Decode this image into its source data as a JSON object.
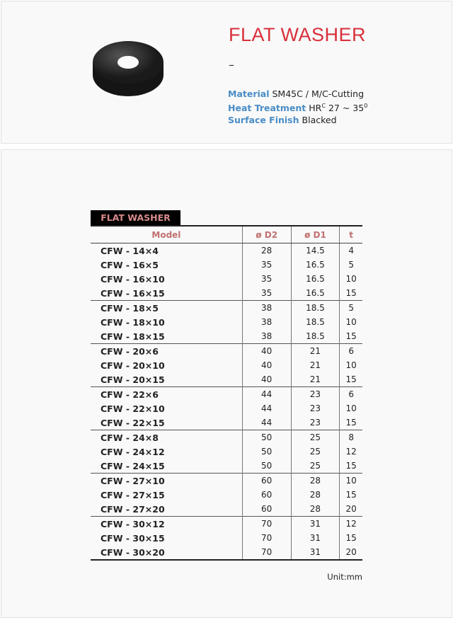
{
  "header": {
    "title": "FLAT WASHER",
    "dash": "–",
    "specs": [
      {
        "label": "Material",
        "value": "SM45C / M/C-Cutting"
      },
      {
        "label": "Heat Treatment",
        "value": "HR",
        "sup": "C",
        "value2": " 27 ~ 35",
        "sup2": "0"
      },
      {
        "label": "Surface Finish",
        "value": "Blacked"
      }
    ]
  },
  "table": {
    "title": "FLAT WASHER",
    "columns": [
      "Model",
      "ø D2",
      "ø D1",
      "t"
    ],
    "rows": [
      [
        "CFW - 14×4",
        "28",
        "14.5",
        "4"
      ],
      [
        "CFW - 16×5",
        "35",
        "16.5",
        "5"
      ],
      [
        "CFW - 16×10",
        "35",
        "16.5",
        "10"
      ],
      [
        "CFW - 16×15",
        "35",
        "16.5",
        "15"
      ],
      [
        "CFW - 18×5",
        "38",
        "18.5",
        "5"
      ],
      [
        "CFW - 18×10",
        "38",
        "18.5",
        "10"
      ],
      [
        "CFW - 18×15",
        "38",
        "18.5",
        "15"
      ],
      [
        "CFW - 20×6",
        "40",
        "21",
        "6"
      ],
      [
        "CFW - 20×10",
        "40",
        "21",
        "10"
      ],
      [
        "CFW - 20×15",
        "40",
        "21",
        "15"
      ],
      [
        "CFW - 22×6",
        "44",
        "23",
        "6"
      ],
      [
        "CFW - 22×10",
        "44",
        "23",
        "10"
      ],
      [
        "CFW - 22×15",
        "44",
        "23",
        "15"
      ],
      [
        "CFW - 24×8",
        "50",
        "25",
        "8"
      ],
      [
        "CFW - 24×12",
        "50",
        "25",
        "12"
      ],
      [
        "CFW - 24×15",
        "50",
        "25",
        "15"
      ],
      [
        "CFW - 27×10",
        "60",
        "28",
        "10"
      ],
      [
        "CFW - 27×15",
        "60",
        "28",
        "15"
      ],
      [
        "CFW - 27×20",
        "60",
        "28",
        "20"
      ],
      [
        "CFW - 30×12",
        "70",
        "31",
        "12"
      ],
      [
        "CFW - 30×15",
        "70",
        "31",
        "15"
      ],
      [
        "CFW - 30×20",
        "70",
        "31",
        "20"
      ]
    ],
    "group_starts": [
      4,
      7,
      10,
      13,
      16,
      19
    ],
    "unit": "Unit:mm"
  }
}
